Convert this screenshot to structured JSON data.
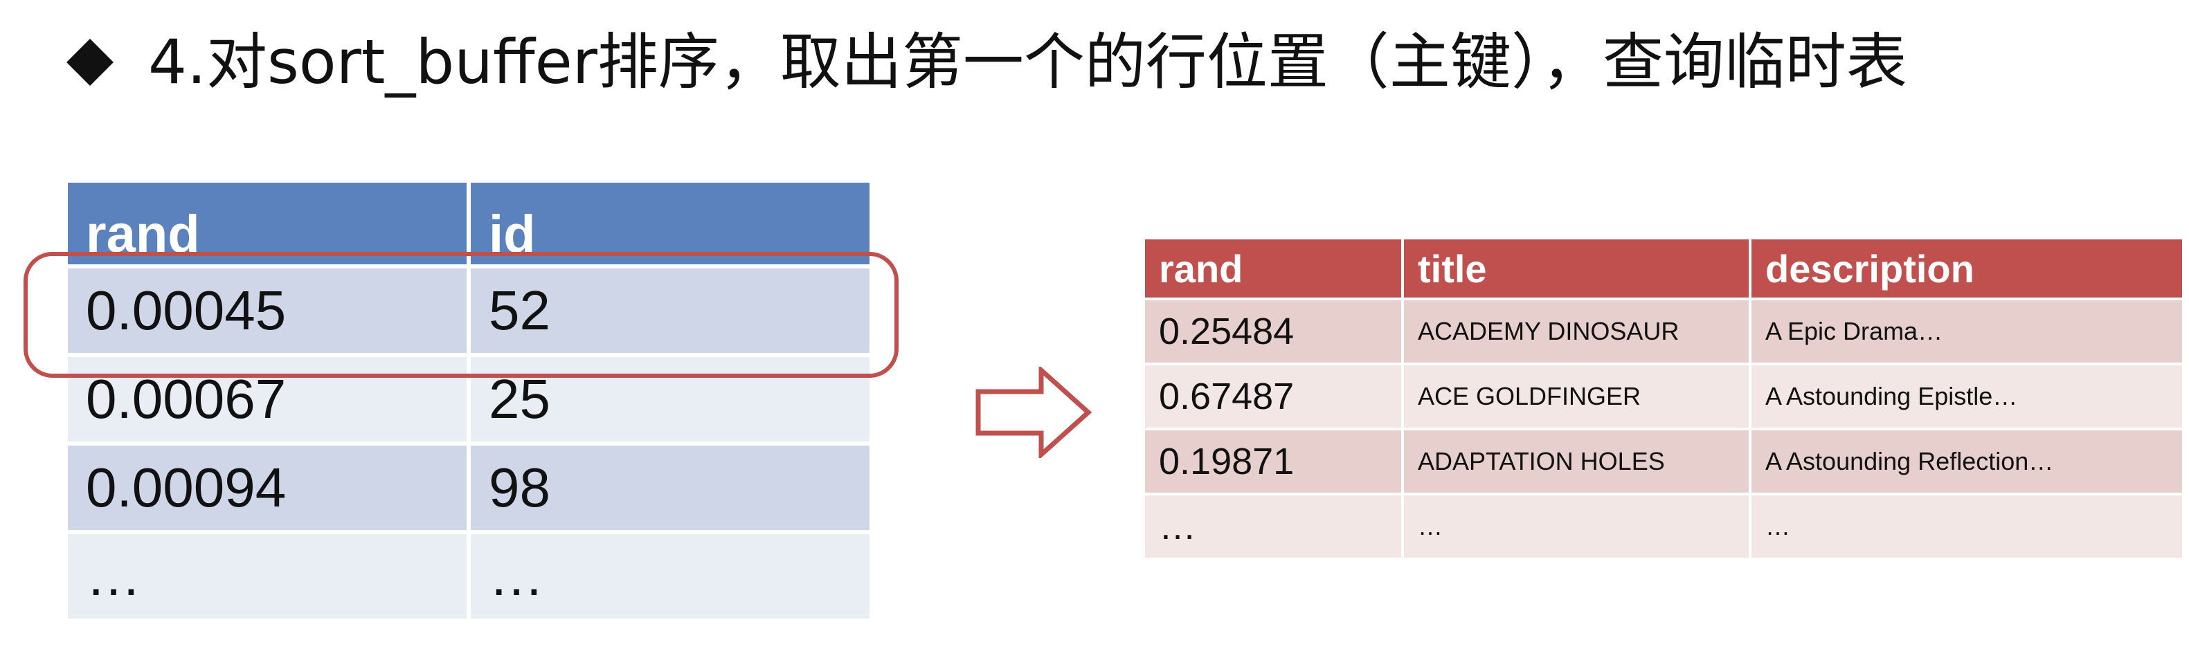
{
  "heading": {
    "bullet_icon": "diamond-bullet",
    "text": "4.对sort_buffer排序，取出第一个的行位置（主键），查询临时表"
  },
  "sort_buffer_table": {
    "columns": [
      "rand",
      "id"
    ],
    "rows": [
      {
        "rand": "0.00045",
        "id": "52"
      },
      {
        "rand": "0.00067",
        "id": "25"
      },
      {
        "rand": "0.00094",
        "id": "98"
      },
      {
        "rand": "…",
        "id": "…"
      }
    ],
    "highlighted_row": 0,
    "header_color": "#5B82BD",
    "highlight_color": "#C0504D"
  },
  "arrow_icon": "right-arrow-outline-icon",
  "temp_table": {
    "columns": [
      "rand",
      "title",
      "description"
    ],
    "rows": [
      {
        "rand": "0.25484",
        "title": "ACADEMY DINOSAUR",
        "description": "A Epic Drama…"
      },
      {
        "rand": "0.67487",
        "title": "ACE GOLDFINGER",
        "description": "A Astounding Epistle…"
      },
      {
        "rand": "0.19871",
        "title": "ADAPTATION  HOLES",
        "description": "A Astounding Reflection…"
      },
      {
        "rand": "…",
        "title": "…",
        "description": "…"
      }
    ],
    "header_color": "#C0504D"
  }
}
